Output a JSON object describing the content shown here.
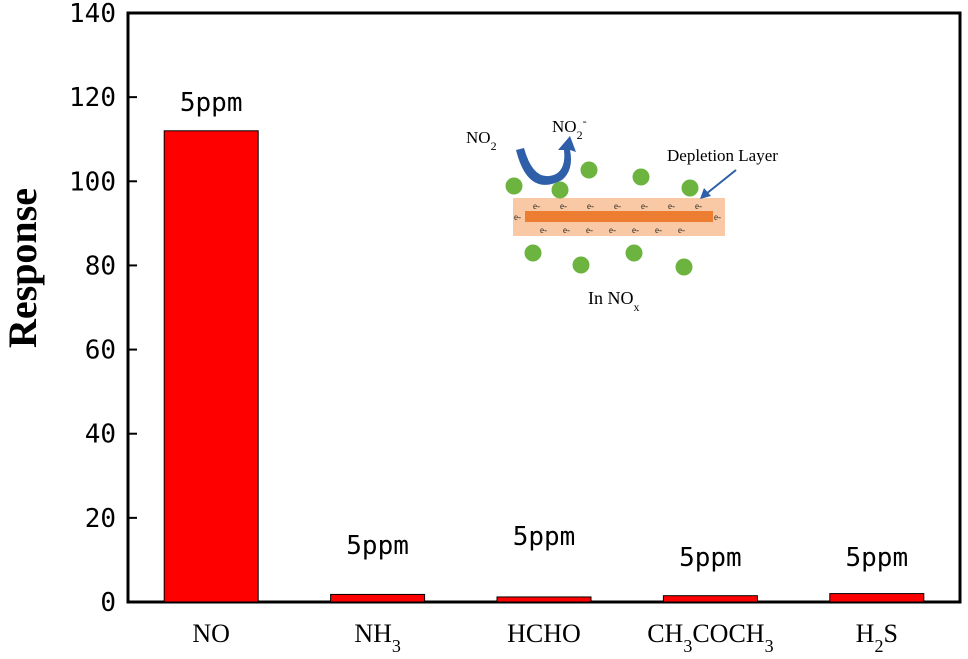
{
  "chart_data": {
    "type": "bar",
    "title": "",
    "xlabel": "",
    "ylabel": "Response",
    "ylim": [
      0,
      140
    ],
    "yticks": [
      0,
      20,
      40,
      60,
      80,
      100,
      120,
      140
    ],
    "categories": [
      {
        "main": "NO",
        "parts": [
          [
            "NO",
            ""
          ]
        ]
      },
      {
        "main": "NH3",
        "parts": [
          [
            "NH",
            ""
          ],
          [
            "3",
            "sub"
          ]
        ]
      },
      {
        "main": "HCHO",
        "parts": [
          [
            "HCHO",
            ""
          ]
        ]
      },
      {
        "main": "CH3COCH3",
        "parts": [
          [
            "CH",
            ""
          ],
          [
            "3",
            "sub"
          ],
          [
            "COCH",
            ""
          ],
          [
            "3",
            "sub"
          ]
        ]
      },
      {
        "main": "H2S",
        "parts": [
          [
            "H",
            ""
          ],
          [
            "2",
            "sub"
          ],
          [
            "S",
            ""
          ]
        ]
      }
    ],
    "values": [
      112,
      1.8,
      1.2,
      1.5,
      2.0
    ],
    "data_labels": [
      "5ppm",
      "5ppm",
      "5ppm",
      "5ppm",
      "5ppm"
    ],
    "bar_color": "#ff0000",
    "grid": false
  },
  "inset": {
    "no2_parts": [
      [
        "NO",
        ""
      ],
      [
        "2",
        "sub"
      ]
    ],
    "no2minus_parts": [
      [
        "NO",
        ""
      ],
      [
        "2",
        "sub"
      ],
      [
        "-",
        "sup"
      ]
    ],
    "depletion_label": "Depletion Layer",
    "caption_parts": [
      [
        "In NO",
        ""
      ],
      [
        "x",
        "sub"
      ]
    ],
    "electron_label": "e-",
    "particle_color": "#6cb33f",
    "layer_color": "#f8c9a4",
    "core_color": "#ed7d31",
    "arrow_color": "#2e5fa8"
  }
}
